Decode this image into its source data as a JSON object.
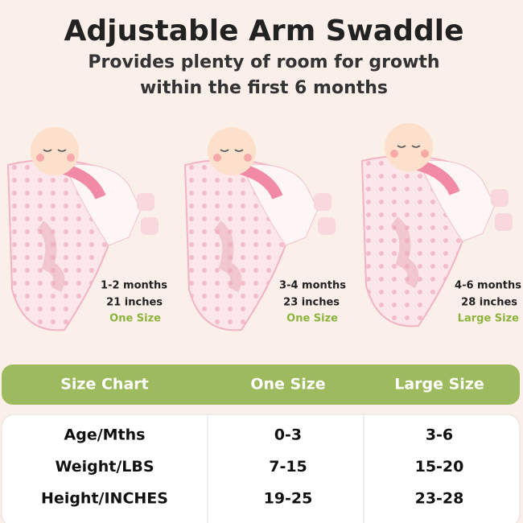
{
  "header": {
    "title": "Adjustable Arm Swaddle",
    "subtitle_lines": [
      "Provides plenty of room for growth",
      "within the first 6 months"
    ]
  },
  "stages": [
    {
      "age": "1-2 months",
      "length": "21 inches",
      "size": "One Size"
    },
    {
      "age": "3-4 months",
      "length": "23 inches",
      "size": "One Size"
    },
    {
      "age": "4-6 months",
      "length": "28 inches",
      "size": "Large Size"
    }
  ],
  "table": {
    "header": [
      "Size Chart",
      "One Size",
      "Large Size"
    ],
    "rows": [
      [
        "Age/Mths",
        "0-3",
        "3-6"
      ],
      [
        "Weight/LBS",
        "7-15",
        "15-20"
      ],
      [
        "Height/INCHES",
        "19-25",
        "23-28"
      ]
    ]
  }
}
